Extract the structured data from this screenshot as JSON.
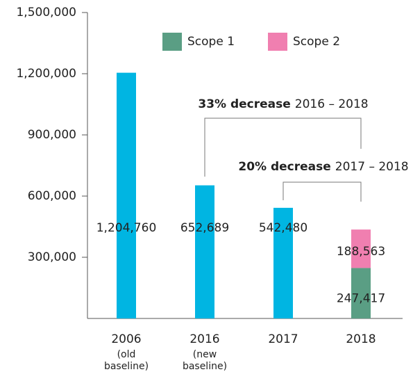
{
  "chart_data": {
    "type": "bar",
    "categories": [
      "2006",
      "2016",
      "2017",
      "2018"
    ],
    "category_notes": [
      "(old baseline)",
      "(new baseline)",
      null,
      null
    ],
    "values": [
      1204760,
      652689,
      542480,
      null
    ],
    "value_labels": [
      "1,204,760",
      "652,689",
      "542,480",
      null
    ],
    "color": "#00b5e2",
    "series": [
      {
        "name": "Scope 1",
        "color": "#5a9e84",
        "values": [
          null,
          null,
          null,
          247417
        ],
        "value_labels": [
          null,
          null,
          null,
          "247,417"
        ]
      },
      {
        "name": "Scope 2",
        "color": "#f07fb0",
        "values": [
          null,
          null,
          null,
          188563
        ],
        "value_labels": [
          null,
          null,
          null,
          "188,563"
        ]
      }
    ],
    "ylim": [
      0,
      1500000
    ],
    "yticks": [
      {
        "value": 300000,
        "label": "300,000"
      },
      {
        "value": 600000,
        "label": "600,000"
      },
      {
        "value": 900000,
        "label": "900,000"
      },
      {
        "value": 1200000,
        "label": "1,200,000"
      },
      {
        "value": 1500000,
        "label": "1,500,000"
      }
    ],
    "annotations": [
      {
        "bold": "33% decrease",
        "text": "2016 – 2018"
      },
      {
        "bold": "20% decrease",
        "text": "2017 – 2018"
      }
    ]
  }
}
